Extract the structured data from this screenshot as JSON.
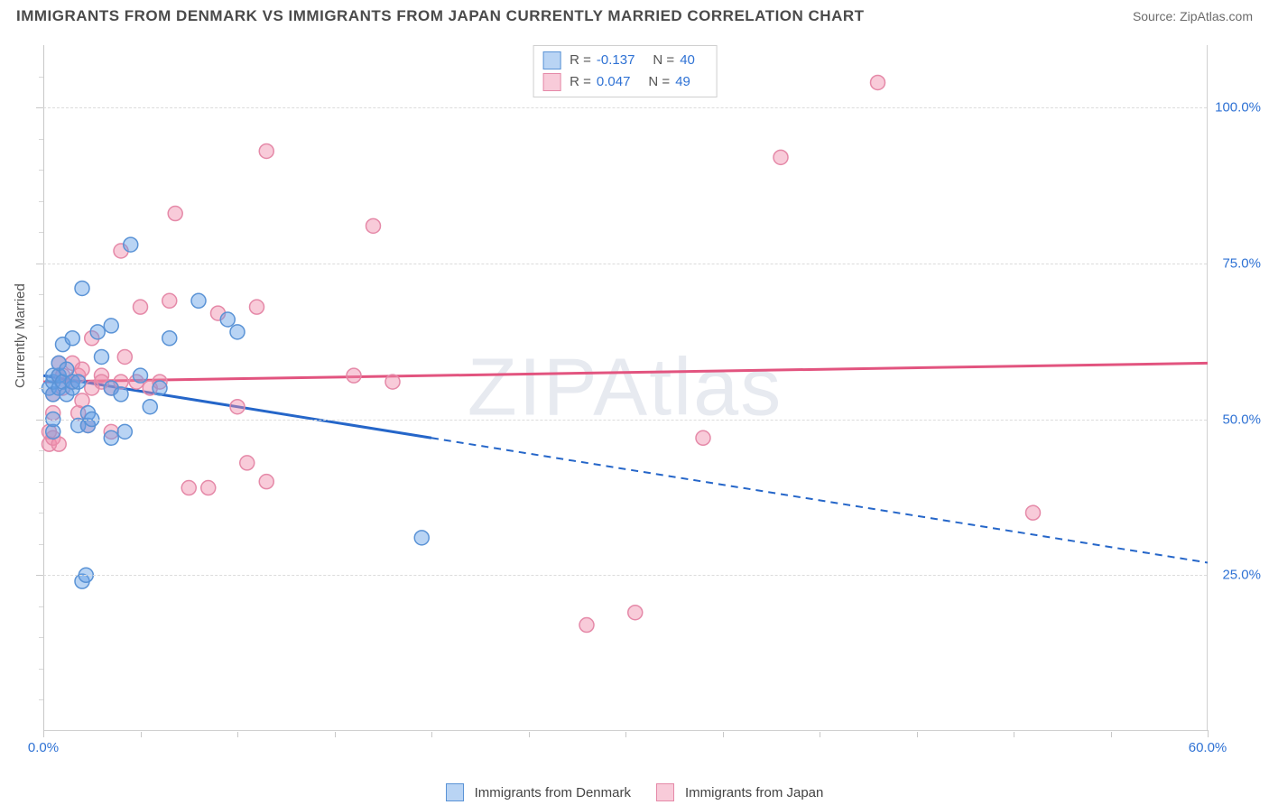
{
  "title": "IMMIGRANTS FROM DENMARK VS IMMIGRANTS FROM JAPAN CURRENTLY MARRIED CORRELATION CHART",
  "source": "Source: ZipAtlas.com",
  "watermark": "ZIPAtlas",
  "y_axis_title": "Currently Married",
  "chart": {
    "type": "scatter",
    "background_color": "#ffffff",
    "grid_color": "#dcdcdc",
    "axis_color": "#c8c8c8",
    "label_color": "#2f72d4",
    "xlim": [
      0,
      60
    ],
    "ylim": [
      0,
      110
    ],
    "x_ticks_labeled": [
      {
        "v": 0,
        "label": "0.0%"
      },
      {
        "v": 60,
        "label": "60.0%"
      }
    ],
    "x_ticks_minor": [
      5,
      10,
      15,
      20,
      25,
      30,
      35,
      40,
      45,
      50,
      55
    ],
    "y_ticks": [
      {
        "v": 25,
        "label": "25.0%"
      },
      {
        "v": 50,
        "label": "50.0%"
      },
      {
        "v": 75,
        "label": "75.0%"
      },
      {
        "v": 100,
        "label": "100.0%"
      }
    ],
    "y_ticks_minor": [
      5,
      10,
      15,
      20,
      30,
      35,
      40,
      45,
      55,
      60,
      65,
      70,
      80,
      85,
      90,
      95,
      105
    ],
    "series": [
      {
        "name": "Immigrants from Denmark",
        "key": "denmark",
        "color_fill": "rgba(100,160,230,0.45)",
        "color_stroke": "#5a93d6",
        "line_color": "#2566c9",
        "marker_radius": 8,
        "R": "-0.137",
        "N": "40",
        "trend": {
          "x1": 0,
          "y1": 57,
          "x2": 60,
          "y2": 27,
          "solid_until_x": 20
        },
        "points": [
          [
            0.3,
            55
          ],
          [
            0.5,
            54
          ],
          [
            0.5,
            56
          ],
          [
            0.5,
            57
          ],
          [
            0.8,
            55
          ],
          [
            0.8,
            57
          ],
          [
            0.8,
            59
          ],
          [
            0.5,
            48
          ],
          [
            0.5,
            50
          ],
          [
            1.0,
            62
          ],
          [
            1.0,
            56
          ],
          [
            1.2,
            54
          ],
          [
            1.2,
            58
          ],
          [
            1.5,
            55
          ],
          [
            1.5,
            56
          ],
          [
            1.5,
            63
          ],
          [
            1.8,
            56
          ],
          [
            1.8,
            49
          ],
          [
            2.0,
            24
          ],
          [
            2.0,
            71
          ],
          [
            2.2,
            25
          ],
          [
            2.3,
            49
          ],
          [
            2.3,
            51
          ],
          [
            2.5,
            50
          ],
          [
            2.8,
            64
          ],
          [
            3.0,
            60
          ],
          [
            3.5,
            47
          ],
          [
            3.5,
            65
          ],
          [
            3.5,
            55
          ],
          [
            4.0,
            54
          ],
          [
            4.2,
            48
          ],
          [
            4.5,
            78
          ],
          [
            5.0,
            57
          ],
          [
            5.5,
            52
          ],
          [
            6.0,
            55
          ],
          [
            6.5,
            63
          ],
          [
            8.0,
            69
          ],
          [
            9.5,
            66
          ],
          [
            10.0,
            64
          ],
          [
            19.5,
            31
          ]
        ]
      },
      {
        "name": "Immigrants from Japan",
        "key": "japan",
        "color_fill": "rgba(240,140,170,0.45)",
        "color_stroke": "#e589a8",
        "line_color": "#e2547f",
        "marker_radius": 8,
        "R": "0.047",
        "N": "49",
        "trend": {
          "x1": 0,
          "y1": 56,
          "x2": 60,
          "y2": 59,
          "solid_until_x": 60
        },
        "points": [
          [
            0.3,
            46
          ],
          [
            0.3,
            48
          ],
          [
            0.5,
            47
          ],
          [
            0.5,
            51
          ],
          [
            0.5,
            54
          ],
          [
            0.8,
            46
          ],
          [
            0.8,
            57
          ],
          [
            0.8,
            59
          ],
          [
            1.0,
            55
          ],
          [
            1.0,
            57
          ],
          [
            1.5,
            56
          ],
          [
            1.5,
            59
          ],
          [
            1.8,
            51
          ],
          [
            1.8,
            57
          ],
          [
            2.0,
            53
          ],
          [
            2.0,
            58
          ],
          [
            2.3,
            49
          ],
          [
            2.5,
            55
          ],
          [
            2.5,
            63
          ],
          [
            3.0,
            57
          ],
          [
            3.0,
            56
          ],
          [
            3.5,
            48
          ],
          [
            3.5,
            55
          ],
          [
            4.0,
            56
          ],
          [
            4.0,
            77
          ],
          [
            4.2,
            60
          ],
          [
            4.8,
            56
          ],
          [
            5.0,
            68
          ],
          [
            5.5,
            55
          ],
          [
            6.0,
            56
          ],
          [
            6.5,
            69
          ],
          [
            6.8,
            83
          ],
          [
            7.5,
            39
          ],
          [
            8.5,
            39
          ],
          [
            9.0,
            67
          ],
          [
            10.0,
            52
          ],
          [
            10.5,
            43
          ],
          [
            11.0,
            68
          ],
          [
            11.5,
            40
          ],
          [
            11.5,
            93
          ],
          [
            16.0,
            57
          ],
          [
            17.0,
            81
          ],
          [
            18.0,
            56
          ],
          [
            28.0,
            17
          ],
          [
            30.5,
            19
          ],
          [
            34.0,
            47
          ],
          [
            38.0,
            92
          ],
          [
            43.0,
            104
          ],
          [
            51.0,
            35
          ]
        ]
      }
    ]
  },
  "legend_bottom": [
    {
      "key": "denmark",
      "label": "Immigrants from Denmark"
    },
    {
      "key": "japan",
      "label": "Immigrants from Japan"
    }
  ]
}
